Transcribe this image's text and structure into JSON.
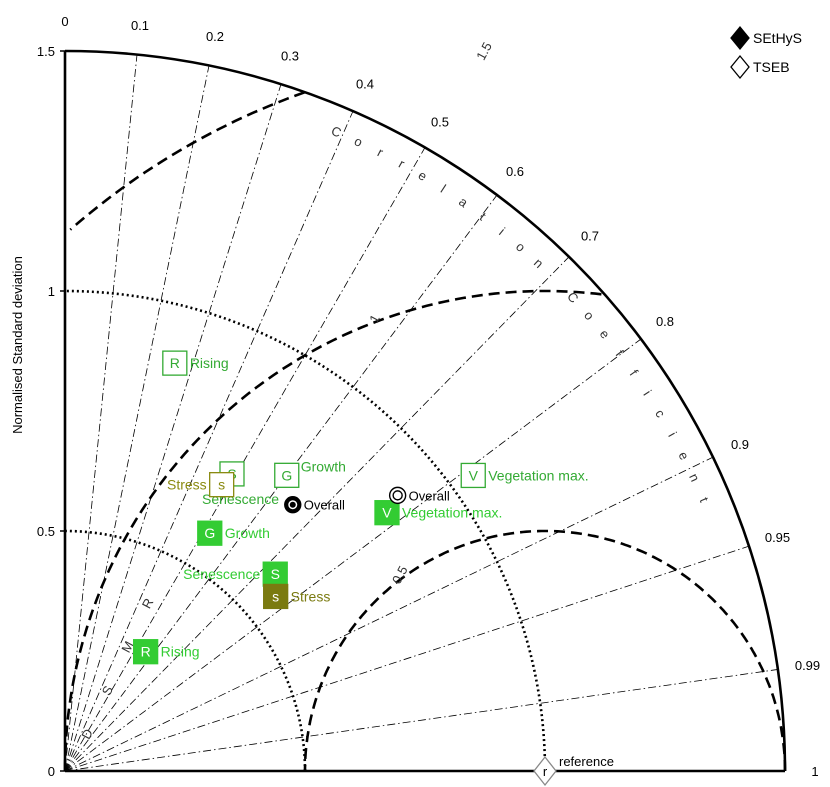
{
  "chart_data": {
    "type": "scatter",
    "subtype": "taylor-diagram",
    "ylabel": "Normalised Standard deviation",
    "arc_label": "Correlation Coefficient",
    "rmsd_label": "RMSD",
    "std_ticks": [
      {
        "value": 0,
        "label": "0"
      },
      {
        "value": 0.5,
        "label": "0.5"
      },
      {
        "value": 1,
        "label": "1"
      },
      {
        "value": 1.5,
        "label": "1.5"
      }
    ],
    "corr_ticks": [
      {
        "value": 0,
        "label": "0"
      },
      {
        "value": 0.1,
        "label": "0.1"
      },
      {
        "value": 0.2,
        "label": "0.2"
      },
      {
        "value": 0.3,
        "label": "0.3"
      },
      {
        "value": 0.4,
        "label": "0.4"
      },
      {
        "value": 0.5,
        "label": "0.5"
      },
      {
        "value": 0.6,
        "label": "0.6"
      },
      {
        "value": 0.7,
        "label": "0.7"
      },
      {
        "value": 0.8,
        "label": "0.8"
      },
      {
        "value": 0.9,
        "label": "0.9"
      },
      {
        "value": 0.95,
        "label": "0.95"
      },
      {
        "value": 0.99,
        "label": "0.99"
      },
      {
        "value": 1,
        "label": "1"
      }
    ],
    "rmsd_ticks": [
      {
        "value": 0.5,
        "label": "0.5"
      },
      {
        "value": 1,
        "label": "1"
      },
      {
        "value": 1.5,
        "label": "1.5"
      }
    ],
    "std_ref_arcs": [
      0.5,
      1
    ],
    "reference": {
      "std": 1,
      "corr": 1,
      "marker": "r",
      "label": "reference"
    },
    "legend": {
      "position": "top-right",
      "items": [
        {
          "label": "SEtHyS",
          "marker": "filled-diamond"
        },
        {
          "label": "TSEB",
          "marker": "open-diamond"
        }
      ]
    },
    "series": [
      {
        "name": "SEtHyS",
        "style": "filled",
        "points": [
          {
            "letter": "R",
            "label": "Rising",
            "std": 0.3,
            "corr": 0.56,
            "color": "#33cc33"
          },
          {
            "letter": "G",
            "label": "Growth",
            "std": 0.58,
            "corr": 0.52,
            "color": "#33cc33"
          },
          {
            "letter": "S",
            "label": "Senescence",
            "std": 0.6,
            "corr": 0.73,
            "color": "#33cc33"
          },
          {
            "letter": "s",
            "label": "Stress",
            "std": 0.57,
            "corr": 0.77,
            "color": "#7a7a10"
          },
          {
            "letter": "O",
            "label": "Overall",
            "std": 0.73,
            "corr": 0.65,
            "color": "#000000"
          },
          {
            "letter": "V",
            "label": "Vegetation max.",
            "std": 0.86,
            "corr": 0.78,
            "color": "#33cc33"
          }
        ]
      },
      {
        "name": "TSEB",
        "style": "open",
        "points": [
          {
            "letter": "R",
            "label": "Rising",
            "std": 0.88,
            "corr": 0.26,
            "color": "#33aa33"
          },
          {
            "letter": "G",
            "label": "Growth",
            "std": 0.77,
            "corr": 0.6,
            "color": "#33aa33"
          },
          {
            "letter": "S",
            "label": "Senescence",
            "std": 0.71,
            "corr": 0.49,
            "color": "#33aa33"
          },
          {
            "letter": "s",
            "label": "Stress",
            "std": 0.68,
            "corr": 0.48,
            "color": "#8a8a10"
          },
          {
            "letter": "O",
            "label": "Overall",
            "std": 0.9,
            "corr": 0.77,
            "color": "#000000"
          },
          {
            "letter": "V",
            "label": "Vegetation max.",
            "std": 1.05,
            "corr": 0.81,
            "color": "#33aa33"
          }
        ]
      }
    ]
  }
}
